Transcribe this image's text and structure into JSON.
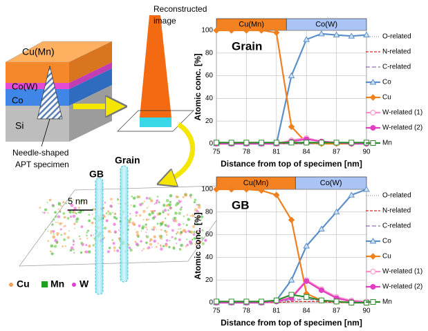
{
  "diagram": {
    "layers": [
      "Cu(Mn)",
      "Co(W)",
      "Co",
      "Si"
    ],
    "needle_label": [
      "Needle-shaped",
      "APT specimen"
    ],
    "reconstructed_label": [
      "Reconstructed",
      "image"
    ],
    "grain_label": "Grain",
    "gb_label": "GB",
    "scale_bar": "5 nm",
    "atom_legend": [
      "Cu",
      "Mn",
      "W"
    ]
  },
  "chart_data": [
    {
      "type": "line",
      "title": "Grain",
      "x_label": "Distance from top of specimen [nm]",
      "y_label": "Atomic conc. [%]",
      "phases": [
        {
          "name": "Cu(Mn)",
          "range": [
            75,
            82
          ]
        },
        {
          "name": "Co(W)",
          "range": [
            82,
            90
          ]
        }
      ],
      "x": [
        75,
        76.5,
        78,
        79.5,
        81,
        82.5,
        84,
        85.5,
        87,
        88.5,
        90
      ],
      "xlim": [
        75,
        90
      ],
      "xticks": [
        75,
        78,
        81,
        84,
        87,
        90
      ],
      "ylim": [
        0,
        100
      ],
      "yticks": [
        0,
        20,
        40,
        60,
        80,
        100
      ],
      "grid": true,
      "series": [
        {
          "name": "O-related",
          "color": "#999999",
          "dash": "1,2",
          "marker": "none",
          "values": [
            0,
            0,
            0,
            0,
            0,
            0,
            0,
            0,
            0,
            0,
            0
          ]
        },
        {
          "name": "N-related",
          "color": "#e02020",
          "dash": "4,2",
          "marker": "none",
          "values": [
            0,
            0,
            0,
            0,
            0,
            0,
            0,
            0,
            0,
            0,
            0
          ]
        },
        {
          "name": "C-related",
          "color": "#8a6fb8",
          "dash": "6,3",
          "marker": "none",
          "values": [
            0,
            0,
            0,
            0,
            0,
            0,
            0,
            0,
            0,
            0,
            0
          ]
        },
        {
          "name": "Co",
          "color": "#5b8fc9",
          "marker": "triangle",
          "values": [
            0,
            0,
            0,
            0,
            0,
            60,
            92,
            97,
            96,
            95,
            96
          ]
        },
        {
          "name": "Cu",
          "color": "#f07f1e",
          "marker": "diamond",
          "values": [
            100,
            100,
            100,
            100,
            98,
            15,
            1,
            0,
            0,
            0,
            0
          ]
        },
        {
          "name": "W-related (1)",
          "color": "#ff8fc8",
          "marker": "circle-open",
          "values": [
            0,
            0,
            0,
            0,
            0,
            3,
            5,
            2,
            1,
            0,
            0
          ]
        },
        {
          "name": "W-related (2)",
          "color": "#e040c0",
          "marker": "circle",
          "values": [
            0,
            0,
            0,
            0,
            0,
            2,
            4,
            2,
            1,
            0,
            0
          ]
        },
        {
          "name": "Mn",
          "color": "#2d8a2d",
          "marker": "square-open",
          "values": [
            1,
            1,
            1,
            1,
            1,
            1,
            1,
            1,
            1,
            1,
            1
          ]
        }
      ]
    },
    {
      "type": "line",
      "title": "GB",
      "x_label": "Distance from top of specimen [nm]",
      "y_label": "Atomic conc. [%]",
      "phases": [
        {
          "name": "Cu(Mn)",
          "range": [
            75,
            82.9
          ]
        },
        {
          "name": "Co(W)",
          "range": [
            82.9,
            90
          ]
        }
      ],
      "x": [
        75,
        76.5,
        78,
        79.5,
        81,
        82.5,
        84,
        85.5,
        87,
        88.5,
        90
      ],
      "xlim": [
        75,
        90
      ],
      "xticks": [
        75,
        78,
        81,
        84,
        87,
        90
      ],
      "ylim": [
        0,
        100
      ],
      "yticks": [
        0,
        20,
        40,
        60,
        80,
        100
      ],
      "grid": true,
      "series": [
        {
          "name": "O-related",
          "color": "#999999",
          "dash": "1,2",
          "marker": "none",
          "values": [
            0,
            0,
            0,
            0,
            1,
            3,
            4,
            2,
            1,
            0,
            0
          ]
        },
        {
          "name": "N-related",
          "color": "#e02020",
          "dash": "4,2",
          "marker": "none",
          "values": [
            0,
            0,
            0,
            0,
            0,
            1,
            1,
            1,
            0,
            0,
            0
          ]
        },
        {
          "name": "C-related",
          "color": "#8a6fb8",
          "dash": "6,3",
          "marker": "none",
          "values": [
            0,
            0,
            0,
            0,
            1,
            2,
            3,
            2,
            1,
            0,
            0
          ]
        },
        {
          "name": "Co",
          "color": "#5b8fc9",
          "marker": "triangle",
          "values": [
            0,
            0,
            0,
            0,
            2,
            20,
            50,
            65,
            80,
            95,
            100
          ]
        },
        {
          "name": "Cu",
          "color": "#f07f1e",
          "marker": "diamond",
          "values": [
            100,
            100,
            100,
            99,
            95,
            73,
            8,
            2,
            1,
            0,
            0
          ]
        },
        {
          "name": "W-related (1)",
          "color": "#ff8fc8",
          "marker": "circle-open",
          "values": [
            0,
            0,
            0,
            0,
            1,
            5,
            20,
            12,
            5,
            2,
            1
          ]
        },
        {
          "name": "W-related (2)",
          "color": "#e040c0",
          "marker": "circle",
          "values": [
            0,
            0,
            0,
            0,
            1,
            4,
            19,
            11,
            4,
            1,
            0
          ]
        },
        {
          "name": "Mn",
          "color": "#2d8a2d",
          "marker": "square-open",
          "values": [
            1,
            1,
            1,
            1,
            2,
            7,
            5,
            2,
            1,
            0,
            0
          ]
        }
      ]
    }
  ]
}
